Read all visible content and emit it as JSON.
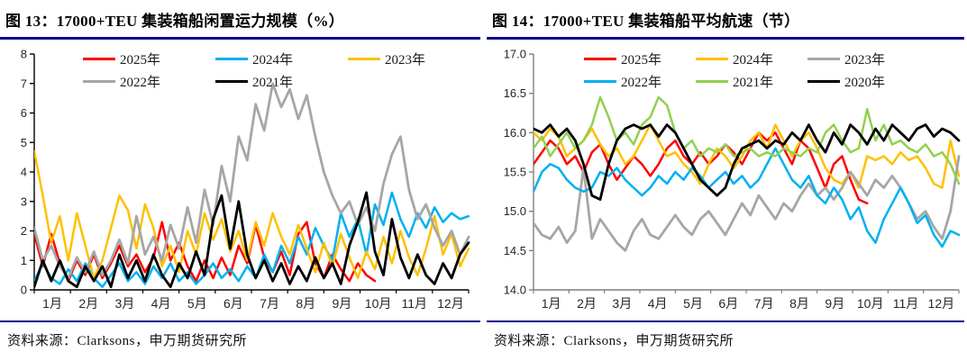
{
  "page": {
    "accent_rule_color": "#0a0a8c",
    "source_note": "资料来源：Clarksons，申万期货研究所"
  },
  "figures": [
    {
      "title": "图 13：17000+TEU 集装箱船闲置运力规模（%）",
      "source": "资料来源：Clarksons，申万期货研究所"
    },
    {
      "title": "图 14：17000+TEU 集装箱船平均航速（节）",
      "source": "资料来源：Clarksons，申万期货研究所"
    }
  ],
  "chart_data": [
    {
      "type": "line",
      "title": "17000+TEU 集装箱船闲置运力规模（%）",
      "xlabel": "",
      "ylabel": "",
      "ylim": [
        0,
        8
      ],
      "y_ticks": [
        0,
        1,
        2,
        3,
        4,
        5,
        6,
        7,
        8
      ],
      "y_tick_labels": [
        "0",
        "1",
        "2",
        "3",
        "4",
        "5",
        "6",
        "7",
        "8"
      ],
      "x_tick_labels": [
        "1月",
        "2月",
        "3月",
        "4月",
        "5月",
        "6月",
        "7月",
        "8月",
        "9月",
        "10月",
        "11月",
        "12月"
      ],
      "x_resolution": "weekly, 52 points per full year; 2025 series ends mid-October",
      "grid": false,
      "legend_position": "top-inside",
      "legend_rows": [
        [
          "2025年",
          "2024年",
          "2023年"
        ],
        [
          "2022年",
          "2021年"
        ]
      ],
      "axis_color": "#000000",
      "series": [
        {
          "name": "2025年",
          "color": "#ff0000",
          "values": [
            1.9,
            0.8,
            1.9,
            0.9,
            0.3,
            1.0,
            0.5,
            1.2,
            0.4,
            0.9,
            1.5,
            0.8,
            1.2,
            0.6,
            1.1,
            2.3,
            1.0,
            1.6,
            0.8,
            0.3,
            1.0,
            0.4,
            1.1,
            0.5,
            1.5,
            0.9,
            2.2,
            1.1,
            0.6,
            1.3,
            0.5,
            1.9,
            2.3,
            0.9,
            0.4,
            1.2,
            0.7,
            0.3,
            0.9,
            0.5,
            0.3
          ]
        },
        {
          "name": "2024年",
          "color": "#00b0f0",
          "values": [
            0.3,
            0.9,
            0.4,
            0.2,
            0.7,
            0.3,
            0.9,
            0.4,
            0.1,
            0.5,
            0.9,
            0.3,
            0.6,
            0.2,
            0.8,
            0.4,
            0.9,
            0.3,
            0.6,
            0.2,
            0.5,
            0.9,
            0.4,
            0.7,
            0.3,
            0.8,
            0.4,
            1.2,
            0.6,
            1.5,
            0.9,
            1.8,
            1.2,
            2.1,
            1.5,
            1.0,
            2.6,
            1.8,
            2.4,
            1.2,
            2.9,
            2.2,
            3.3,
            2.4,
            1.8,
            2.6,
            2.1,
            2.8,
            2.3,
            2.6,
            2.4,
            2.5
          ]
        },
        {
          "name": "2023年",
          "color": "#ffc000",
          "values": [
            4.7,
            3.2,
            1.6,
            2.5,
            1.0,
            2.6,
            1.5,
            0.4,
            1.0,
            2.1,
            3.2,
            2.7,
            1.4,
            2.9,
            2.1,
            0.8,
            1.5,
            0.6,
            2.0,
            1.2,
            2.6,
            1.7,
            2.4,
            1.3,
            2.0,
            1.0,
            2.3,
            1.5,
            2.6,
            1.8,
            1.2,
            2.2,
            1.4,
            0.6,
            1.6,
            0.8,
            1.9,
            1.1,
            0.4,
            1.3,
            0.7,
            1.8,
            0.9,
            2.0,
            1.1,
            0.5,
            1.4,
            2.5,
            1.2,
            1.9,
            0.8,
            1.4
          ]
        },
        {
          "name": "2022年",
          "color": "#a6a6a6",
          "values": [
            2.1,
            1.0,
            1.5,
            0.8,
            0.4,
            1.1,
            0.6,
            1.3,
            0.5,
            1.0,
            1.7,
            0.9,
            2.5,
            1.2,
            1.8,
            1.0,
            2.2,
            1.4,
            2.8,
            1.6,
            3.4,
            2.2,
            4.2,
            3.0,
            5.2,
            4.4,
            6.3,
            5.4,
            7.0,
            6.2,
            6.8,
            5.8,
            6.6,
            5.2,
            4.0,
            3.2,
            2.6,
            3.0,
            2.2,
            2.8,
            2.0,
            3.6,
            4.6,
            5.2,
            3.4,
            2.4,
            2.9,
            2.1,
            1.5,
            2.0,
            1.2,
            1.8
          ]
        },
        {
          "name": "2021年",
          "color": "#000000",
          "values": [
            0.1,
            1.0,
            0.3,
            1.0,
            0.3,
            0.1,
            0.8,
            0.3,
            0.8,
            0.1,
            1.2,
            0.4,
            1.0,
            0.3,
            1.2,
            0.5,
            0.1,
            0.9,
            0.4,
            1.3,
            0.5,
            2.4,
            3.2,
            1.4,
            3.0,
            1.2,
            0.4,
            1.0,
            0.3,
            0.9,
            0.2,
            0.8,
            0.3,
            1.1,
            0.4,
            0.9,
            0.2,
            1.5,
            2.3,
            3.3,
            1.3,
            0.5,
            2.4,
            1.1,
            0.4,
            1.2,
            0.5,
            0.2,
            0.9,
            0.4,
            1.2,
            1.6
          ]
        }
      ]
    },
    {
      "type": "line",
      "title": "17000+TEU 集装箱船平均航速（节）",
      "xlabel": "",
      "ylabel": "",
      "ylim": [
        14.0,
        17.0
      ],
      "y_ticks": [
        14.0,
        14.5,
        15.0,
        15.5,
        16.0,
        16.5,
        17.0
      ],
      "y_tick_labels": [
        "14.0",
        "14.5",
        "15.0",
        "15.5",
        "16.0",
        "16.5",
        "17.0"
      ],
      "x_tick_labels": [
        "1月",
        "2月",
        "3月",
        "4月",
        "5月",
        "6月",
        "7月",
        "8月",
        "9月",
        "10月",
        "11月",
        "12月"
      ],
      "x_resolution": "weekly, 52 points per full year; 2025 series ends mid-October",
      "grid": false,
      "legend_position": "top-inside",
      "legend_rows": [
        [
          "2025年",
          "2024年",
          "2023年"
        ],
        [
          "2022年",
          "2021年",
          "2020年"
        ]
      ],
      "axis_color": "#7f7f7f",
      "series": [
        {
          "name": "2025年",
          "color": "#ff0000",
          "values": [
            15.6,
            15.75,
            15.9,
            15.8,
            15.6,
            15.7,
            15.5,
            15.75,
            15.85,
            15.6,
            15.4,
            15.55,
            15.7,
            15.6,
            15.45,
            15.6,
            15.8,
            15.9,
            15.7,
            15.6,
            15.75,
            15.6,
            15.7,
            15.85,
            15.75,
            15.6,
            15.8,
            16.0,
            15.9,
            16.0,
            15.8,
            15.6,
            15.9,
            15.8,
            15.55,
            15.3,
            15.6,
            15.7,
            15.4,
            15.15,
            15.1
          ]
        },
        {
          "name": "2024年",
          "color": "#ffc000",
          "values": [
            16.0,
            15.9,
            16.05,
            15.95,
            15.7,
            15.8,
            15.9,
            16.05,
            15.85,
            15.7,
            15.8,
            15.6,
            15.7,
            15.9,
            16.1,
            15.9,
            15.7,
            15.75,
            15.6,
            15.5,
            15.35,
            15.6,
            15.8,
            15.7,
            15.55,
            15.7,
            15.9,
            16.0,
            15.8,
            16.1,
            15.9,
            15.7,
            15.9,
            16.0,
            15.8,
            15.55,
            15.4,
            15.35,
            15.5,
            15.3,
            15.7,
            15.65,
            15.7,
            15.6,
            15.75,
            15.65,
            15.7,
            15.55,
            15.35,
            15.3,
            15.9,
            15.45
          ]
        },
        {
          "name": "2023年",
          "color": "#a6a6a6",
          "values": [
            14.85,
            14.7,
            14.65,
            14.8,
            14.6,
            14.75,
            15.55,
            14.65,
            14.9,
            14.75,
            14.6,
            14.5,
            14.75,
            14.9,
            14.7,
            14.65,
            14.8,
            14.95,
            14.8,
            14.7,
            14.9,
            15.0,
            14.85,
            14.7,
            14.9,
            15.1,
            14.95,
            15.2,
            15.05,
            14.9,
            15.1,
            15.0,
            15.2,
            15.35,
            15.2,
            15.3,
            15.15,
            15.3,
            15.5,
            15.35,
            15.2,
            15.4,
            15.3,
            15.45,
            15.3,
            15.1,
            14.9,
            15.0,
            14.8,
            14.65,
            15.0,
            15.7
          ]
        },
        {
          "name": "2022年",
          "color": "#00b0f0",
          "values": [
            15.25,
            15.5,
            15.6,
            15.55,
            15.4,
            15.3,
            15.25,
            15.3,
            15.5,
            15.45,
            15.55,
            15.4,
            15.3,
            15.2,
            15.3,
            15.45,
            15.35,
            15.5,
            15.4,
            15.55,
            15.45,
            15.3,
            15.4,
            15.5,
            15.35,
            15.45,
            15.3,
            15.4,
            15.6,
            15.8,
            15.6,
            15.4,
            15.3,
            15.45,
            15.2,
            15.1,
            15.3,
            15.15,
            14.9,
            15.05,
            14.75,
            14.6,
            14.9,
            15.1,
            15.3,
            15.1,
            14.85,
            14.95,
            14.7,
            14.55,
            14.75,
            14.7
          ]
        },
        {
          "name": "2021年",
          "color": "#92d050",
          "values": [
            15.8,
            15.95,
            15.7,
            15.85,
            16.0,
            15.8,
            15.9,
            16.1,
            16.45,
            16.2,
            15.9,
            16.0,
            15.85,
            16.1,
            16.2,
            16.45,
            16.35,
            16.0,
            15.8,
            15.9,
            15.7,
            15.8,
            15.75,
            15.85,
            15.7,
            15.75,
            15.8,
            15.7,
            15.75,
            15.7,
            15.8,
            15.75,
            15.7,
            15.8,
            15.75,
            16.0,
            16.1,
            15.9,
            15.75,
            15.8,
            16.3,
            15.9,
            16.1,
            15.85,
            15.9,
            15.8,
            15.75,
            15.85,
            15.7,
            15.75,
            15.6,
            15.35
          ]
        },
        {
          "name": "2020年",
          "color": "#000000",
          "values": [
            16.05,
            16.0,
            16.1,
            15.95,
            16.05,
            15.9,
            15.6,
            15.2,
            15.15,
            15.6,
            15.9,
            16.05,
            16.1,
            16.05,
            16.1,
            15.95,
            16.1,
            16.0,
            15.8,
            15.6,
            15.4,
            15.3,
            15.2,
            15.3,
            15.6,
            15.8,
            15.85,
            15.9,
            15.8,
            15.9,
            15.85,
            16.0,
            15.9,
            16.1,
            15.9,
            15.75,
            16.0,
            15.85,
            16.1,
            16.0,
            15.85,
            16.05,
            15.9,
            16.1,
            16.0,
            15.9,
            16.05,
            16.1,
            15.95,
            16.05,
            16.0,
            15.9
          ]
        }
      ]
    }
  ]
}
